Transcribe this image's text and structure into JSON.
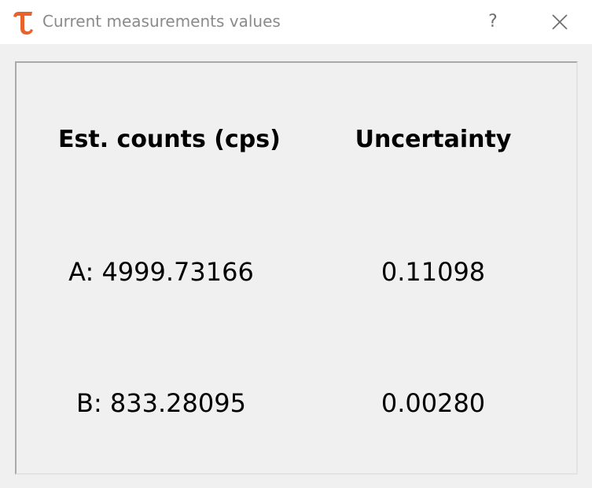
{
  "window": {
    "title": "Current measurements values",
    "help_label": "?",
    "app_icon": "tau-logo-icon",
    "accent_color": "#e8622c"
  },
  "table": {
    "headers": [
      "Est. counts (cps)",
      "Uncertainty"
    ],
    "rows": [
      {
        "counts": "A: 4999.73166",
        "uncertainty": "0.11098"
      },
      {
        "counts": "B: 833.28095",
        "uncertainty": "0.00280"
      }
    ]
  }
}
